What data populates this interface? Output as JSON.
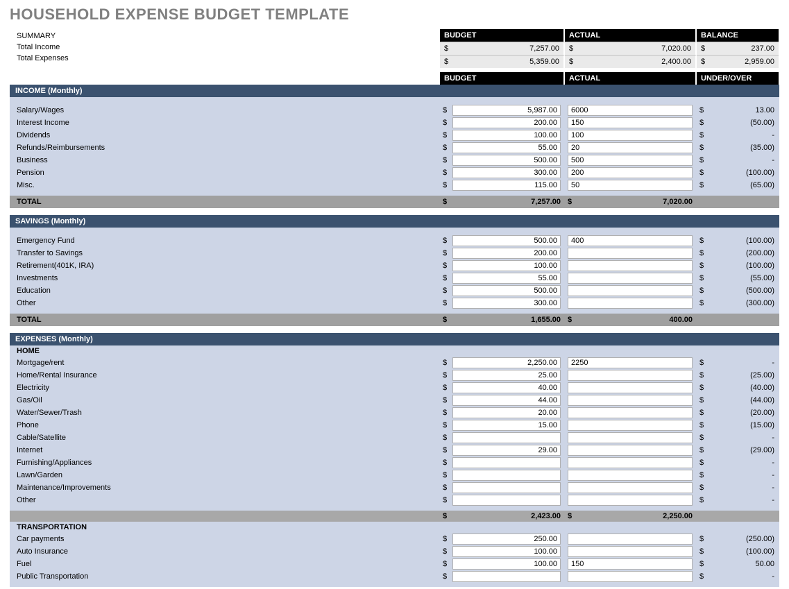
{
  "title": "HOUSEHOLD EXPENSE BUDGET TEMPLATE",
  "colors": {
    "header_black": "#000000",
    "section_bar": "#3b526f",
    "section_body": "#cdd5e6",
    "total_bar": "#a0a0a0",
    "title_gray": "#808080"
  },
  "summary": {
    "label": "SUMMARY",
    "rows": [
      {
        "label": "Total Income",
        "budget": "7,257.00",
        "actual": "7,020.00",
        "balance": "237.00"
      },
      {
        "label": "Total Expenses",
        "budget": "5,359.00",
        "actual": "2,400.00",
        "balance": "2,959.00"
      }
    ],
    "headers": {
      "budget": "BUDGET",
      "actual": "ACTUAL",
      "balance": "BALANCE"
    }
  },
  "col_headers": {
    "budget": "BUDGET",
    "actual": "ACTUAL",
    "under_over": "UNDER/OVER"
  },
  "sections": {
    "income": {
      "title": "INCOME (Monthly)",
      "items": [
        {
          "label": "Salary/Wages",
          "budget": "5,987.00",
          "actual": "6000",
          "balance": "13.00"
        },
        {
          "label": "Interest Income",
          "budget": "200.00",
          "actual": "150",
          "balance": "(50.00)"
        },
        {
          "label": "Dividends",
          "budget": "100.00",
          "actual": "100",
          "balance": "-"
        },
        {
          "label": "Refunds/Reimbursements",
          "budget": "55.00",
          "actual": "20",
          "balance": "(35.00)"
        },
        {
          "label": "Business",
          "budget": "500.00",
          "actual": "500",
          "balance": "-"
        },
        {
          "label": "Pension",
          "budget": "300.00",
          "actual": "200",
          "balance": "(100.00)"
        },
        {
          "label": "Misc.",
          "budget": "115.00",
          "actual": "50",
          "balance": "(65.00)"
        }
      ],
      "total": {
        "label": "TOTAL",
        "budget": "7,257.00",
        "actual": "7,020.00"
      }
    },
    "savings": {
      "title": "SAVINGS (Monthly)",
      "items": [
        {
          "label": "Emergency Fund",
          "budget": "500.00",
          "actual": "400",
          "balance": "(100.00)"
        },
        {
          "label": "Transfer to Savings",
          "budget": "200.00",
          "actual": "",
          "balance": "(200.00)"
        },
        {
          "label": "Retirement(401K, IRA)",
          "budget": "100.00",
          "actual": "",
          "balance": "(100.00)"
        },
        {
          "label": "Investments",
          "budget": "55.00",
          "actual": "",
          "balance": "(55.00)"
        },
        {
          "label": "Education",
          "budget": "500.00",
          "actual": "",
          "balance": "(500.00)"
        },
        {
          "label": "Other",
          "budget": "300.00",
          "actual": "",
          "balance": "(300.00)"
        }
      ],
      "total": {
        "label": "TOTAL",
        "budget": "1,655.00",
        "actual": "400.00"
      }
    },
    "expenses": {
      "title": "EXPENSES (Monthly)",
      "groups": {
        "home": {
          "title": "HOME",
          "items": [
            {
              "label": "Mortgage/rent",
              "budget": "2,250.00",
              "actual": "2250",
              "balance": "-"
            },
            {
              "label": "Home/Rental Insurance",
              "budget": "25.00",
              "actual": "",
              "balance": "(25.00)"
            },
            {
              "label": "Electricity",
              "budget": "40.00",
              "actual": "",
              "balance": "(40.00)"
            },
            {
              "label": "Gas/Oil",
              "budget": "44.00",
              "actual": "",
              "balance": "(44.00)"
            },
            {
              "label": "Water/Sewer/Trash",
              "budget": "20.00",
              "actual": "",
              "balance": "(20.00)"
            },
            {
              "label": "Phone",
              "budget": "15.00",
              "actual": "",
              "balance": "(15.00)"
            },
            {
              "label": "Cable/Satellite",
              "budget": "",
              "actual": "",
              "balance": "-"
            },
            {
              "label": "Internet",
              "budget": "29.00",
              "actual": "",
              "balance": "(29.00)"
            },
            {
              "label": "Furnishing/Appliances",
              "budget": "",
              "actual": "",
              "balance": "-"
            },
            {
              "label": "Lawn/Garden",
              "budget": "",
              "actual": "",
              "balance": "-"
            },
            {
              "label": "Maintenance/Improvements",
              "budget": "",
              "actual": "",
              "balance": "-"
            },
            {
              "label": "Other",
              "budget": "",
              "actual": "",
              "balance": "-"
            }
          ],
          "subtotal": {
            "budget": "2,423.00",
            "actual": "2,250.00"
          }
        },
        "transportation": {
          "title": "TRANSPORTATION",
          "items": [
            {
              "label": "Car payments",
              "budget": "250.00",
              "actual": "",
              "balance": "(250.00)"
            },
            {
              "label": "Auto Insurance",
              "budget": "100.00",
              "actual": "",
              "balance": "(100.00)"
            },
            {
              "label": "Fuel",
              "budget": "100.00",
              "actual": "150",
              "balance": "50.00"
            },
            {
              "label": "Public Transportation",
              "budget": "",
              "actual": "",
              "balance": "-"
            }
          ]
        }
      }
    }
  }
}
